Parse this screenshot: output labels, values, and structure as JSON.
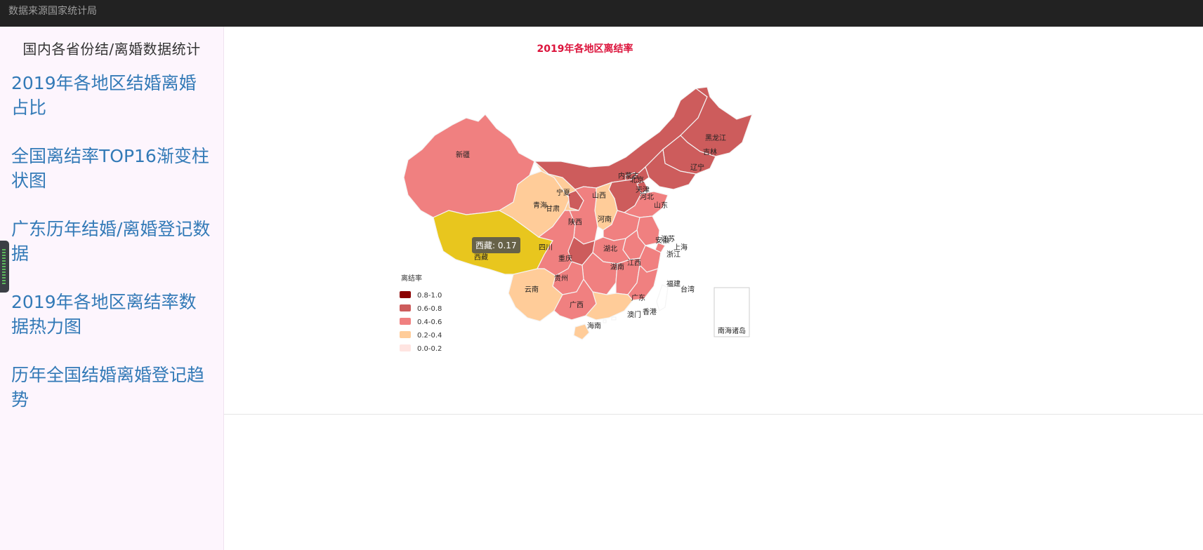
{
  "topbar": {
    "title": "数据来源国家统计局"
  },
  "sidebar": {
    "title": "国内各省份结/离婚数据统计",
    "items": [
      {
        "label": "2019年各地区结婚离婚占比"
      },
      {
        "label": "全国离结率TOP16渐变柱状图"
      },
      {
        "label": "广东历年结婚/离婚登记数据"
      },
      {
        "label": "2019年各地区离结率数据热力图"
      },
      {
        "label": "历年全国结婚离婚登记趋势"
      }
    ]
  },
  "map": {
    "title": "2019年各地区离结率",
    "title_color": "#dc143c",
    "legend_title": "离结率",
    "legend": [
      {
        "label": "0.8-1.0",
        "color": "#8b0000"
      },
      {
        "label": "0.6-0.8",
        "color": "#cd5c5c"
      },
      {
        "label": "0.4-0.6",
        "color": "#f08080"
      },
      {
        "label": "0.2-0.4",
        "color": "#ffcc99"
      },
      {
        "label": "0.0-0.2",
        "color": "#ffe4e1"
      }
    ],
    "highlight_color": "#e8c61e",
    "tooltip": "西藏: 0.17",
    "provinces": [
      {
        "name": "新疆",
        "band": "0.4-0.6"
      },
      {
        "name": "西藏",
        "band": "0.0-0.2"
      },
      {
        "name": "青海",
        "band": "0.2-0.4"
      },
      {
        "name": "甘肃",
        "band": "0.2-0.4"
      },
      {
        "name": "内蒙古",
        "band": "0.6-0.8"
      },
      {
        "name": "黑龙江",
        "band": "0.6-0.8"
      },
      {
        "name": "吉林",
        "band": "0.6-0.8"
      },
      {
        "name": "辽宁",
        "band": "0.6-0.8"
      },
      {
        "name": "北京",
        "band": "0.6-0.8"
      },
      {
        "name": "天津",
        "band": "0.6-0.8"
      },
      {
        "name": "河北",
        "band": "0.6-0.8"
      },
      {
        "name": "山西",
        "band": "0.2-0.4"
      },
      {
        "name": "宁夏",
        "band": "0.6-0.8"
      },
      {
        "name": "陕西",
        "band": "0.4-0.6"
      },
      {
        "name": "山东",
        "band": "0.4-0.6"
      },
      {
        "name": "河南",
        "band": "0.4-0.6"
      },
      {
        "name": "江苏",
        "band": "0.4-0.6"
      },
      {
        "name": "安徽",
        "band": "0.4-0.6"
      },
      {
        "name": "上海",
        "band": "0.4-0.6"
      },
      {
        "name": "浙江",
        "band": "0.4-0.6"
      },
      {
        "name": "湖北",
        "band": "0.4-0.6"
      },
      {
        "name": "四川",
        "band": "0.4-0.6"
      },
      {
        "name": "重庆",
        "band": "0.6-0.8"
      },
      {
        "name": "湖南",
        "band": "0.4-0.6"
      },
      {
        "name": "江西",
        "band": "0.4-0.6"
      },
      {
        "name": "贵州",
        "band": "0.4-0.6"
      },
      {
        "name": "云南",
        "band": "0.2-0.4"
      },
      {
        "name": "福建",
        "band": "0.4-0.6"
      },
      {
        "name": "广西",
        "band": "0.4-0.6"
      },
      {
        "name": "广东",
        "band": "0.2-0.4"
      },
      {
        "name": "台湾",
        "band": "none"
      },
      {
        "name": "海南",
        "band": "0.2-0.4"
      },
      {
        "name": "香港",
        "band": "none"
      },
      {
        "name": "澳门",
        "band": "none"
      }
    ],
    "inset_label": "南海诸岛"
  }
}
